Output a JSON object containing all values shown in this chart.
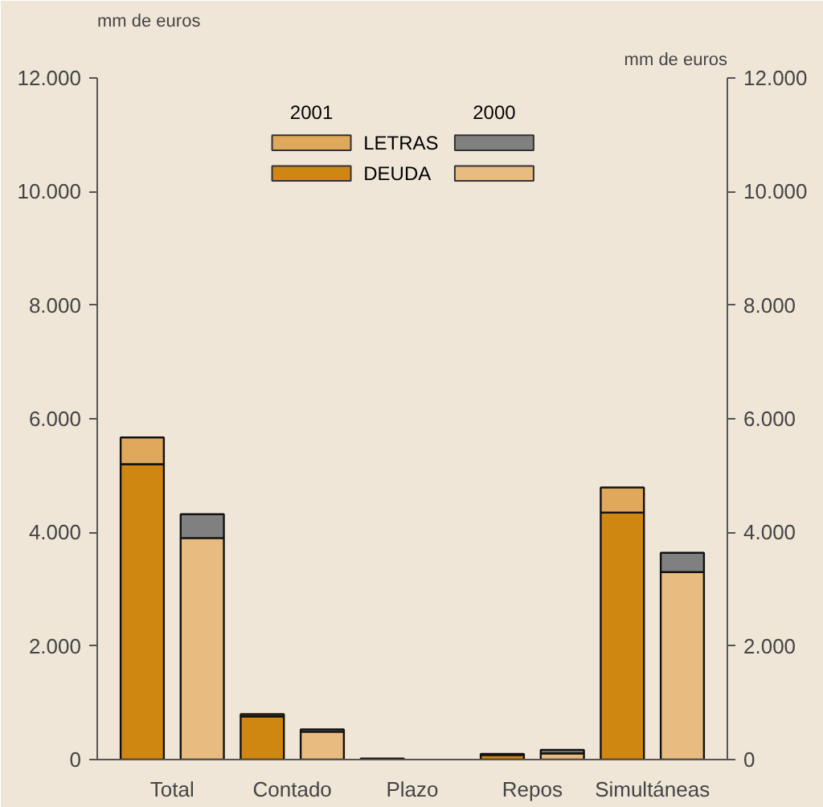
{
  "chart_data": {
    "type": "bar",
    "stacked": true,
    "categories": [
      "Total",
      null,
      "Contado",
      null,
      "Plazo",
      null,
      "Repos",
      null,
      "Simultáneas",
      null
    ],
    "series": [
      {
        "name": "DEUDA",
        "color": "#d08712",
        "values": [
          5200,
          null,
          760,
          null,
          20,
          null,
          80,
          null,
          4350,
          null
        ]
      },
      {
        "name": "LETRAS",
        "color": "#e0a85a",
        "values": [
          470,
          null,
          40,
          null,
          null,
          null,
          20,
          null,
          440,
          null
        ]
      },
      {
        "color": "#e8bb80",
        "values": [
          null,
          3900,
          null,
          490,
          null,
          null,
          null,
          110,
          null,
          3300
        ]
      },
      {
        "color": "#808080",
        "values": [
          null,
          420,
          null,
          40,
          null,
          null,
          null,
          60,
          null,
          340
        ]
      }
    ],
    "annotations": [
      "2001",
      "2000"
    ],
    "ylabel": "mm de euros",
    "y2label": "mm de euros",
    "ylim": [
      0,
      12000
    ],
    "y2lim": [
      0,
      12000
    ],
    "yticks": [
      0,
      {
        "value": 2000,
        "label": "2.000"
      },
      {
        "value": 4000,
        "label": "4.000"
      },
      {
        "value": 6000,
        "label": "6.000"
      },
      {
        "value": 8000,
        "label": "8.000"
      },
      {
        "value": 10000,
        "label": "10.000"
      },
      {
        "value": 12000,
        "label": "12.000"
      }
    ],
    "y2ticks": [
      0,
      {
        "value": 2000,
        "label": "2.000"
      },
      {
        "value": 4000,
        "label": "4.000"
      },
      {
        "value": 6000,
        "label": "6.000"
      },
      {
        "value": 8000,
        "label": "8.000"
      },
      {
        "value": 10000,
        "label": "10.000"
      },
      {
        "value": 12000,
        "label": "12.000"
      }
    ],
    "grid": false,
    "legend": "top"
  }
}
